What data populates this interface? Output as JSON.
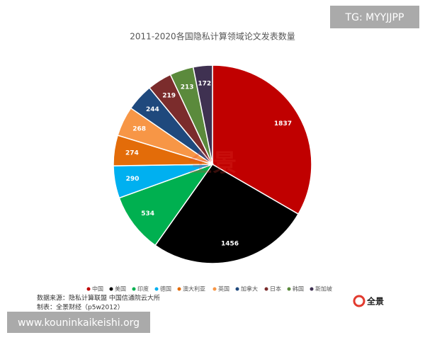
{
  "chart_data": {
    "type": "pie",
    "title": "2011-2020各国隐私计算领域论文发表数量",
    "categories": [
      "中国",
      "美国",
      "印度",
      "德国",
      "澳大利亚",
      "英国",
      "加拿大",
      "日本",
      "韩国",
      "新加坡"
    ],
    "values": [
      1837,
      1456,
      534,
      290,
      274,
      268,
      244,
      219,
      213,
      172
    ],
    "colors": [
      "#c00000",
      "#000000",
      "#00b050",
      "#00b0f0",
      "#e36c09",
      "#f79646",
      "#1f497d",
      "#7b2c2c",
      "#5b8a3c",
      "#3f3151"
    ],
    "legend": "bottom"
  },
  "source": "数据来源：隐私计算联盟 中国信通院云大所",
  "credit": "制表：全景财经（p5w2012）",
  "logo": "全景",
  "watermark": "TG: MYYJJPP",
  "website": "www.kouninkaikeishi.org"
}
